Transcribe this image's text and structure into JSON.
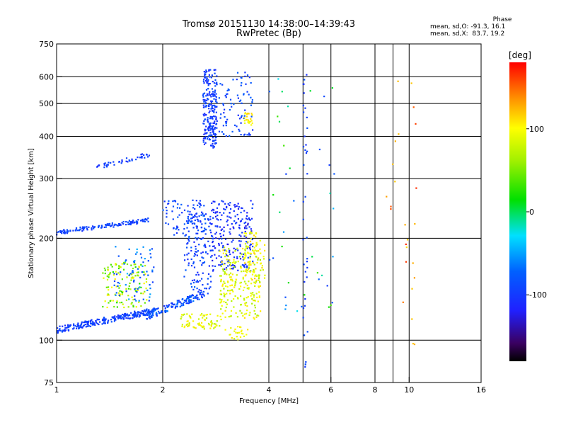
{
  "chart_data": {
    "type": "scatter",
    "title": "Tromsø 20151130 14:38:00–14:39:43",
    "subtitle": "RwPretec (Bp)",
    "xlabel": "Frequency [MHz]",
    "ylabel": "Stationary phase Virtual Height [km]",
    "x_scale": "log2",
    "y_scale": "log",
    "xlim": [
      1,
      16
    ],
    "ylim": [
      75,
      750
    ],
    "x_ticks": [
      1,
      2,
      4,
      6,
      8,
      10,
      16
    ],
    "x_gridlines": [
      2,
      4,
      5,
      6,
      8,
      9,
      10
    ],
    "y_ticks": [
      75,
      100,
      200,
      300,
      400,
      500,
      600,
      750
    ],
    "colorbar": {
      "label": "[deg]",
      "range": [
        -180,
        180
      ],
      "ticks": [
        100,
        0,
        -100
      ]
    },
    "phase_stats": {
      "heading": "Phase",
      "line_o": "mean, sd,O: -91.3, 16.1",
      "line_x": "mean, sd,X:  83.7, 19.2"
    },
    "clusters": [
      {
        "f": [
          1.0,
          1.9
        ],
        "h": [
          105,
          125
        ],
        "phase": [
          -110,
          -80
        ],
        "shape": "rising",
        "n": 260
      },
      {
        "f": [
          1.0,
          1.85
        ],
        "h": [
          205,
          230
        ],
        "phase": [
          -105,
          -80
        ],
        "shape": "rising",
        "n": 130
      },
      {
        "f": [
          1.3,
          1.85
        ],
        "h": [
          320,
          360
        ],
        "phase": [
          -110,
          -85
        ],
        "shape": "rising",
        "n": 45
      },
      {
        "f": [
          1.35,
          1.8
        ],
        "h": [
          125,
          170
        ],
        "phase": [
          20,
          110
        ],
        "shape": "box",
        "n": 130
      },
      {
        "f": [
          1.45,
          1.9
        ],
        "h": [
          130,
          190
        ],
        "phase": [
          -100,
          -40
        ],
        "shape": "box",
        "n": 70
      },
      {
        "f": [
          1.8,
          2.6
        ],
        "h": [
          115,
          140
        ],
        "phase": [
          -110,
          -60
        ],
        "shape": "rising",
        "n": 130
      },
      {
        "f": [
          2.0,
          2.65
        ],
        "h": [
          200,
          260
        ],
        "phase": [
          -110,
          -70
        ],
        "shape": "box",
        "n": 80
      },
      {
        "f": [
          2.3,
          2.75
        ],
        "h": [
          135,
          240
        ],
        "phase": [
          -115,
          -70
        ],
        "shape": "box",
        "n": 150
      },
      {
        "f": [
          2.25,
          2.9
        ],
        "h": [
          108,
          120
        ],
        "phase": [
          70,
          110
        ],
        "shape": "box",
        "n": 70
      },
      {
        "f": [
          2.6,
          2.85
        ],
        "h": [
          370,
          630
        ],
        "phase": [
          -115,
          -80
        ],
        "shape": "box",
        "n": 220
      },
      {
        "f": [
          2.8,
          3.6
        ],
        "h": [
          400,
          620
        ],
        "phase": [
          -110,
          -70
        ],
        "shape": "box",
        "n": 90
      },
      {
        "f": [
          2.75,
          3.6
        ],
        "h": [
          160,
          260
        ],
        "phase": [
          -130,
          -85
        ],
        "shape": "box",
        "n": 220
      },
      {
        "f": [
          2.9,
          3.8
        ],
        "h": [
          115,
          190
        ],
        "phase": [
          60,
          110
        ],
        "shape": "box",
        "n": 230
      },
      {
        "f": [
          3.4,
          3.9
        ],
        "h": [
          150,
          210
        ],
        "phase": [
          80,
          120
        ],
        "shape": "box",
        "n": 70
      },
      {
        "f": [
          3.4,
          3.6
        ],
        "h": [
          430,
          470
        ],
        "phase": [
          90,
          115
        ],
        "shape": "box",
        "n": 25
      },
      {
        "f": [
          3.0,
          3.5
        ],
        "h": [
          100,
          110
        ],
        "phase": [
          80,
          110
        ],
        "shape": "box",
        "n": 25
      },
      {
        "f": [
          5.0,
          5.15
        ],
        "h": [
          80,
          620
        ],
        "phase": [
          -110,
          -80
        ],
        "shape": "column",
        "n": 40
      },
      {
        "f": [
          4.0,
          6.2
        ],
        "h": [
          120,
          600
        ],
        "phase": [
          -100,
          40
        ],
        "shape": "box",
        "n": 40
      },
      {
        "f": [
          8.5,
          10.5
        ],
        "h": [
          95,
          620
        ],
        "phase": [
          110,
          170
        ],
        "shape": "box",
        "n": 25
      }
    ]
  }
}
